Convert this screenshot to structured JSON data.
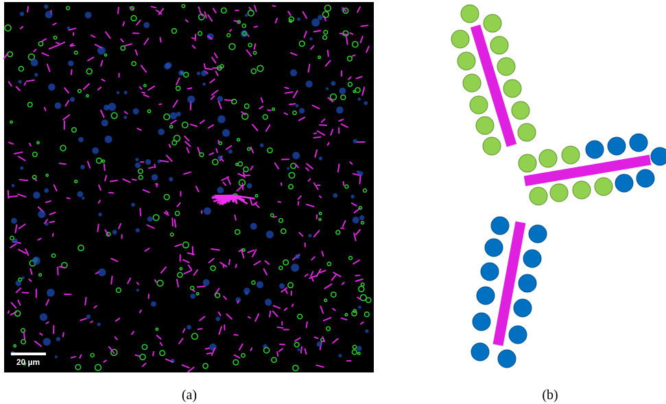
{
  "panels": [
    {
      "label": "(a)",
      "scale_bar": "20 µm"
    },
    {
      "label": "(b)"
    }
  ]
}
